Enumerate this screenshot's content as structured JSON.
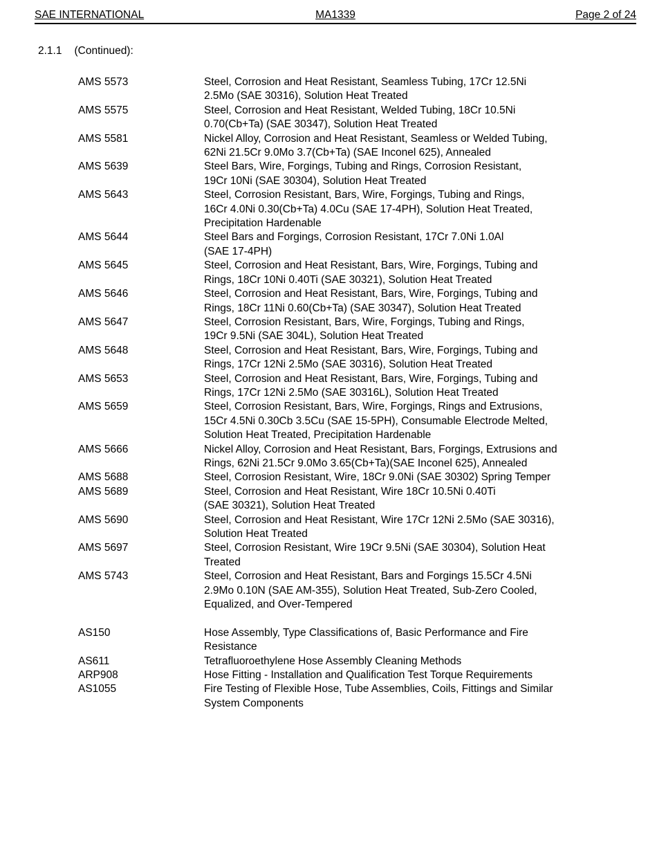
{
  "header": {
    "org": "SAE INTERNATIONAL",
    "doc_number": "MA1339",
    "page": "Page 2 of 24"
  },
  "section": {
    "number": "2.1.1",
    "label": "(Continued):"
  },
  "reference_groups": [
    {
      "items": [
        {
          "spec": "AMS 5573",
          "lines": [
            "Steel, Corrosion and Heat Resistant, Seamless Tubing, 17Cr 12.5Ni",
            "2.5Mo (SAE 30316), Solution Heat Treated"
          ]
        },
        {
          "spec": "AMS 5575",
          "lines": [
            "Steel, Corrosion and Heat Resistant, Welded Tubing, 18Cr 10.5Ni",
            "0.70(Cb+Ta) (SAE 30347), Solution Heat Treated"
          ]
        },
        {
          "spec": "AMS 5581",
          "lines": [
            "Nickel Alloy, Corrosion and Heat Resistant, Seamless or Welded Tubing,",
            "62Ni 21.5Cr 9.0Mo 3.7(Cb+Ta) (SAE Inconel 625), Annealed"
          ]
        },
        {
          "spec": "AMS 5639",
          "lines": [
            "Steel Bars, Wire, Forgings, Tubing and Rings, Corrosion Resistant,",
            "19Cr 10Ni (SAE 30304), Solution Heat Treated"
          ]
        },
        {
          "spec": "AMS 5643",
          "lines": [
            "Steel, Corrosion Resistant, Bars, Wire, Forgings, Tubing and Rings,",
            "16Cr 4.0Ni 0.30(Cb+Ta) 4.0Cu (SAE 17-4PH), Solution Heat Treated,",
            "Precipitation Hardenable"
          ]
        },
        {
          "spec": "AMS 5644",
          "lines": [
            "Steel Bars and Forgings, Corrosion Resistant, 17Cr 7.0Ni 1.0Al",
            "(SAE 17-4PH)"
          ]
        },
        {
          "spec": "AMS 5645",
          "lines": [
            "Steel, Corrosion and Heat Resistant, Bars, Wire, Forgings, Tubing and",
            "Rings, 18Cr 10Ni 0.40Ti (SAE 30321), Solution Heat Treated"
          ]
        },
        {
          "spec": "AMS 5646",
          "lines": [
            "Steel, Corrosion and Heat Resistant, Bars, Wire, Forgings, Tubing and",
            "Rings, 18Cr 11Ni 0.60(Cb+Ta) (SAE 30347), Solution Heat Treated"
          ]
        },
        {
          "spec": "AMS 5647",
          "lines": [
            "Steel, Corrosion Resistant, Bars, Wire, Forgings, Tubing and Rings,",
            "19Cr 9.5Ni (SAE 304L), Solution Heat Treated"
          ]
        },
        {
          "spec": "AMS 5648",
          "lines": [
            "Steel, Corrosion and Heat Resistant, Bars, Wire, Forgings, Tubing and",
            "Rings, 17Cr 12Ni 2.5Mo (SAE 30316), Solution Heat Treated"
          ]
        },
        {
          "spec": "AMS 5653",
          "lines": [
            "Steel, Corrosion and Heat Resistant, Bars, Wire, Forgings, Tubing and",
            "Rings, 17Cr 12Ni 2.5Mo (SAE 30316L), Solution Heat Treated"
          ]
        },
        {
          "spec": "AMS 5659",
          "lines": [
            "Steel, Corrosion Resistant, Bars, Wire, Forgings, Rings and Extrusions,",
            "15Cr 4.5Ni 0.30Cb 3.5Cu (SAE 15-5PH), Consumable Electrode Melted,",
            "Solution Heat Treated, Precipitation Hardenable"
          ]
        },
        {
          "spec": "AMS 5666",
          "lines": [
            "Nickel Alloy, Corrosion and Heat Resistant, Bars, Forgings, Extrusions and",
            "Rings, 62Ni 21.5Cr 9.0Mo 3.65(Cb+Ta)(SAE Inconel 625), Annealed"
          ]
        },
        {
          "spec": "AMS 5688",
          "lines": [
            "Steel, Corrosion Resistant, Wire, 18Cr 9.0Ni (SAE 30302) Spring Temper"
          ]
        },
        {
          "spec": "AMS 5689",
          "lines": [
            "Steel, Corrosion and Heat Resistant, Wire 18Cr 10.5Ni 0.40Ti",
            "(SAE 30321), Solution Heat Treated"
          ]
        },
        {
          "spec": "AMS 5690",
          "lines": [
            "Steel, Corrosion and Heat Resistant, Wire 17Cr 12Ni 2.5Mo (SAE 30316),",
            "Solution Heat Treated"
          ]
        },
        {
          "spec": "AMS 5697",
          "lines": [
            "Steel, Corrosion Resistant, Wire 19Cr 9.5Ni (SAE 30304), Solution Heat",
            "Treated"
          ]
        },
        {
          "spec": "AMS 5743",
          "lines": [
            "Steel, Corrosion and Heat Resistant, Bars and Forgings 15.5Cr 4.5Ni",
            "2.9Mo 0.10N (SAE AM-355), Solution Heat Treated, Sub-Zero Cooled,",
            "Equalized, and Over-Tempered"
          ]
        }
      ]
    },
    {
      "items": [
        {
          "spec": "AS150",
          "lines": [
            "Hose Assembly, Type Classifications of, Basic Performance and Fire",
            "Resistance"
          ]
        },
        {
          "spec": "AS611",
          "lines": [
            "Tetrafluoroethylene Hose Assembly Cleaning Methods"
          ]
        },
        {
          "spec": "ARP908",
          "lines": [
            "Hose Fitting - Installation and Qualification Test Torque Requirements"
          ]
        },
        {
          "spec": "AS1055",
          "lines": [
            "Fire Testing of Flexible Hose, Tube Assemblies, Coils, Fittings and Similar",
            "System Components"
          ]
        }
      ]
    }
  ]
}
